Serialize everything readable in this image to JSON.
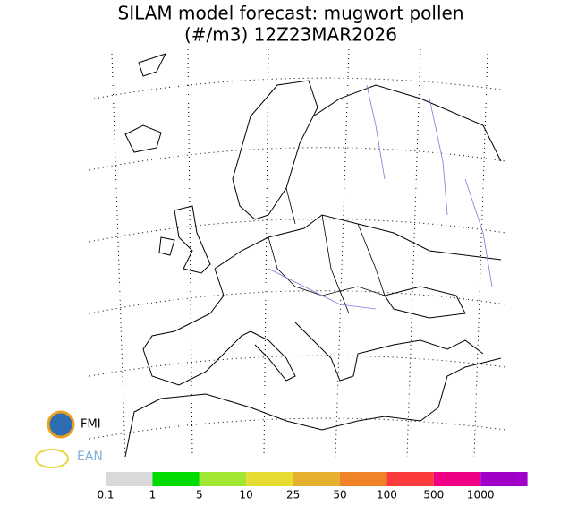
{
  "header": {
    "title": "SILAM model forecast: mugwort pollen",
    "subtitle": "(#/m3) 12Z23MAR2026"
  },
  "logos": {
    "fmi": "FMI",
    "ean": "EAN"
  },
  "legend": {
    "levels": [
      0.1,
      1,
      5,
      10,
      25,
      50,
      100,
      500,
      1000
    ],
    "colors": [
      "#d9d9d9",
      "#00dc00",
      "#a0e632",
      "#e6dc32",
      "#e6af2d",
      "#f08228",
      "#fa3c3c",
      "#f00082",
      "#a000c8"
    ]
  }
}
